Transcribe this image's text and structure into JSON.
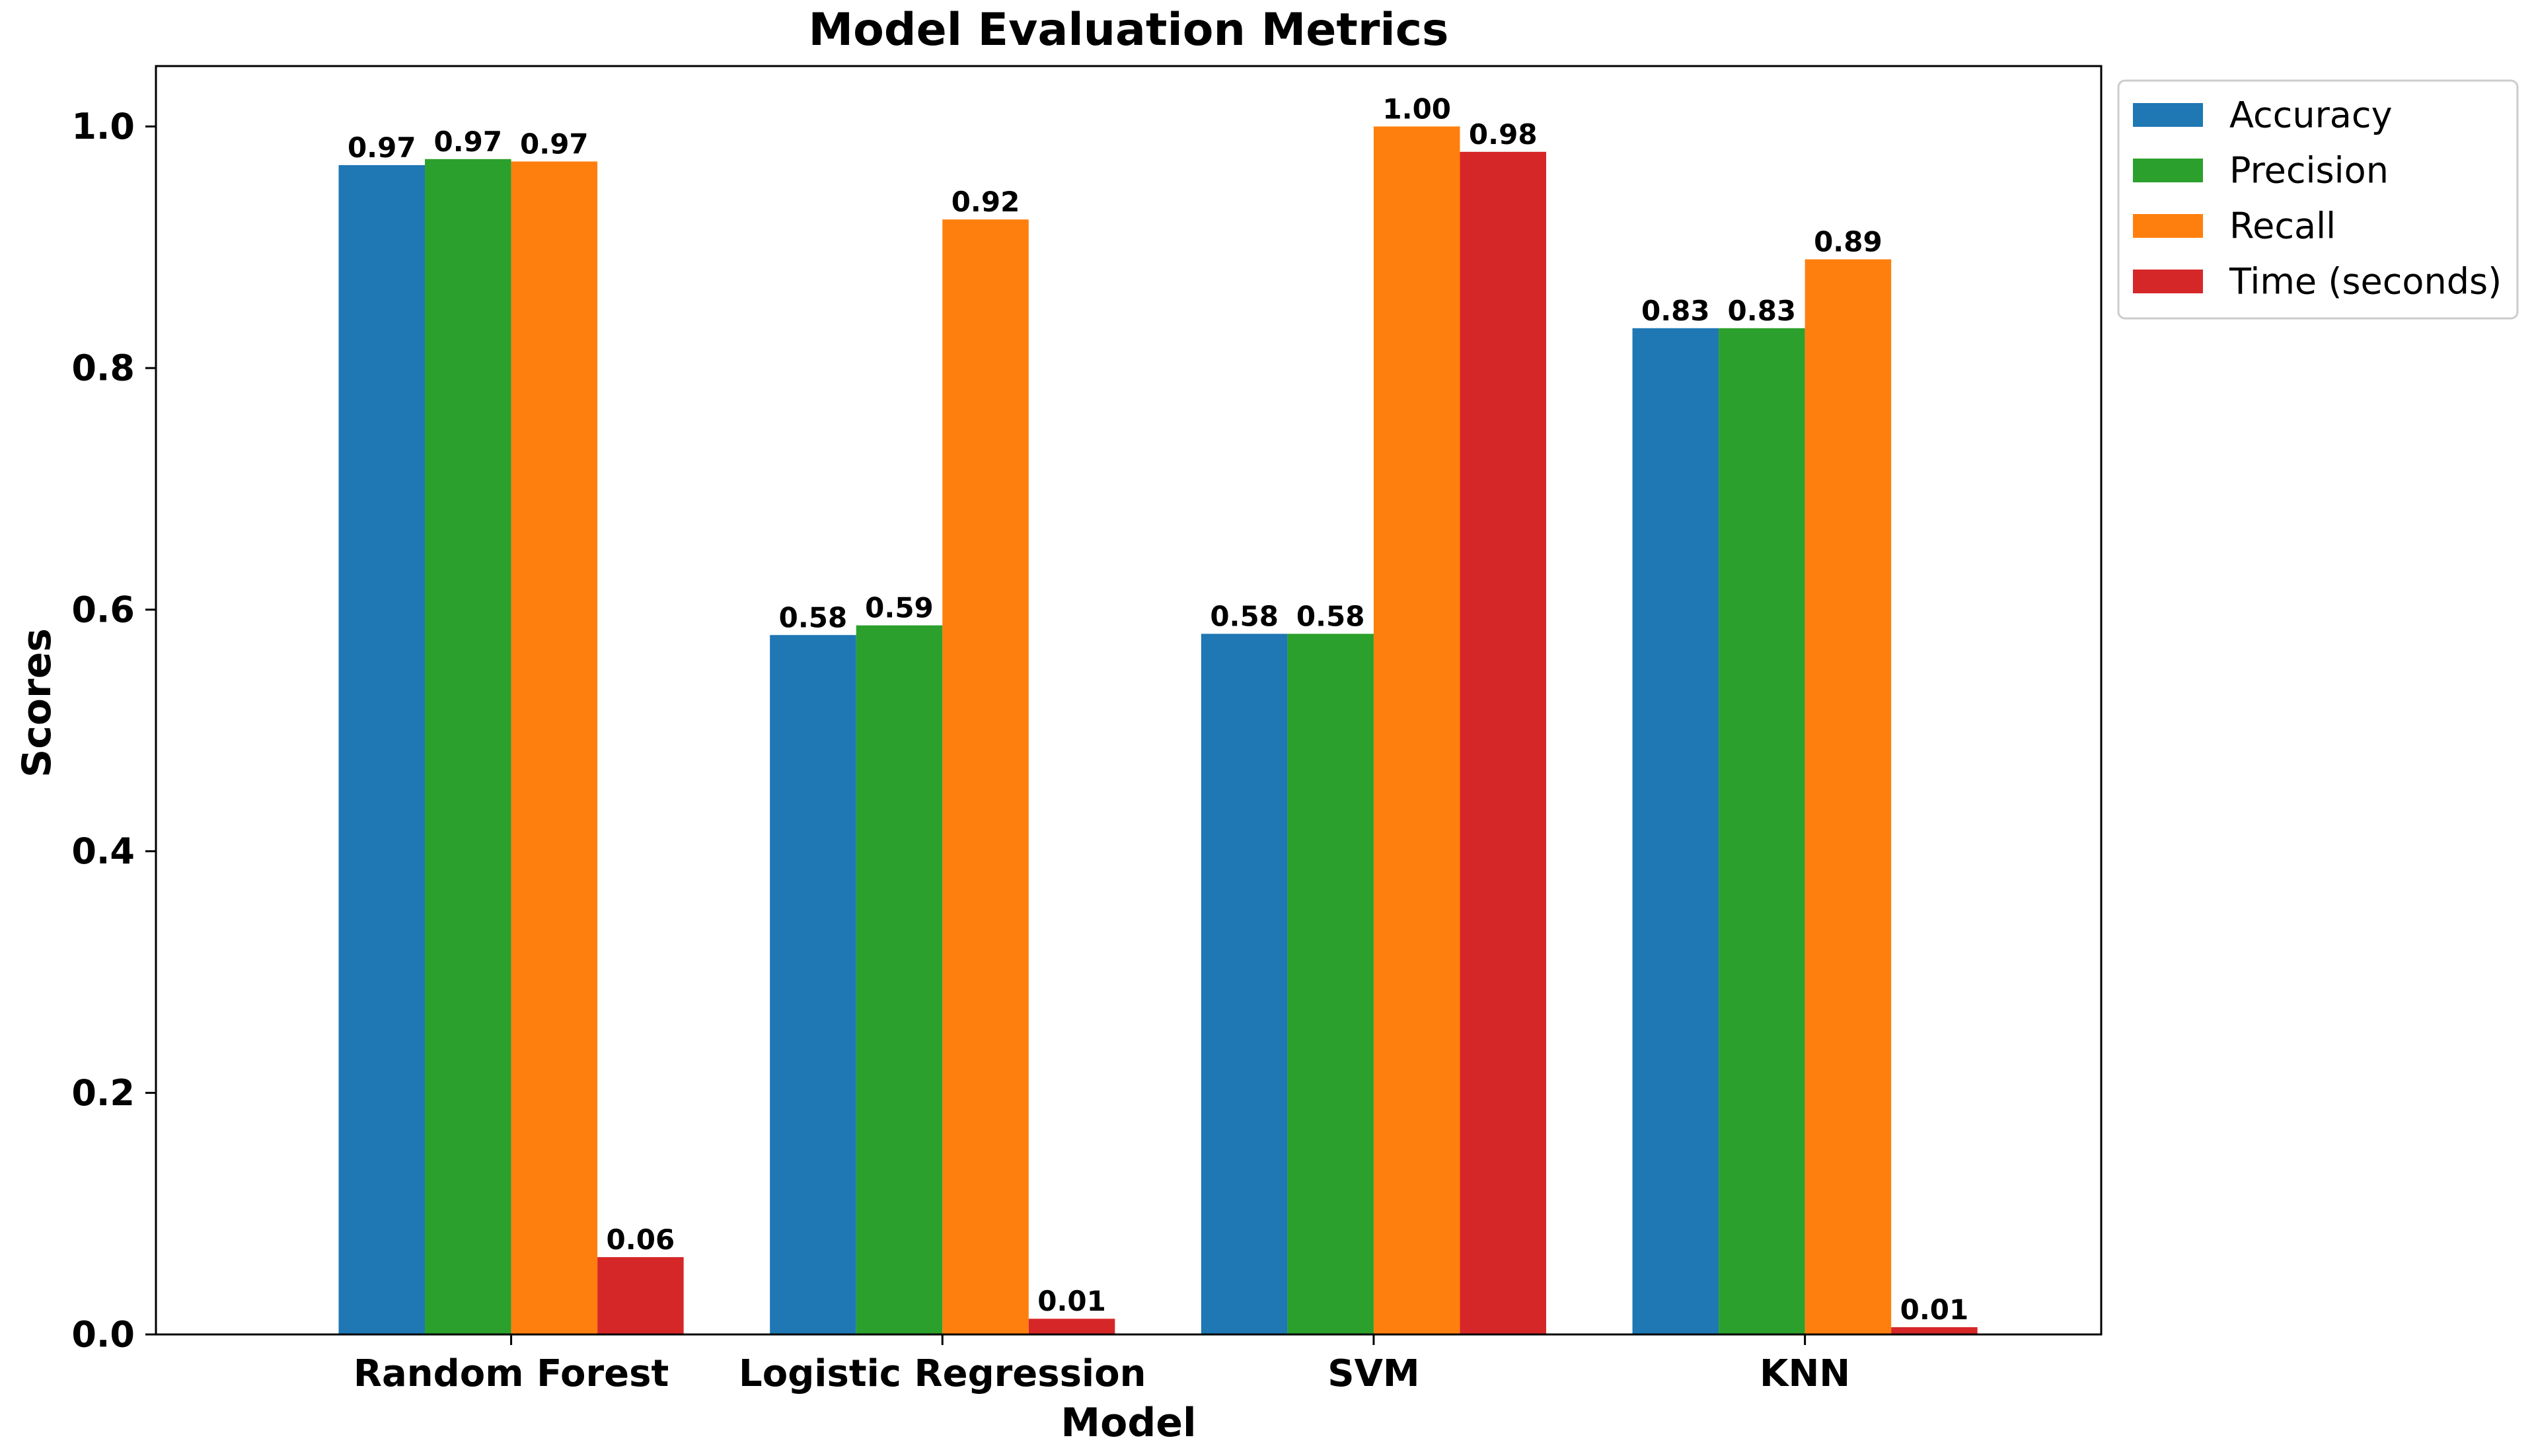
{
  "chart_data": {
    "type": "bar",
    "title": "Model Evaluation Metrics",
    "xlabel": "Model",
    "ylabel": "Scores",
    "ylim": [
      0,
      1.05
    ],
    "yticks": [
      0.0,
      0.2,
      0.4,
      0.6,
      0.8,
      1.0
    ],
    "ytick_labels": [
      "0.0",
      "0.2",
      "0.4",
      "0.6",
      "0.8",
      "1.0"
    ],
    "categories": [
      "Random Forest",
      "Logistic Regression",
      "SVM",
      "KNN"
    ],
    "grid": false,
    "legend_position": "outside-top-right",
    "series": [
      {
        "name": "Accuracy",
        "color": "#1f77b4",
        "values": [
          0.968,
          0.579,
          0.58,
          0.833
        ],
        "labels": [
          "0.97",
          "0.58",
          "0.58",
          "0.83"
        ]
      },
      {
        "name": "Precision",
        "color": "#2ca02c",
        "values": [
          0.973,
          0.587,
          0.58,
          0.833
        ],
        "labels": [
          "0.97",
          "0.59",
          "0.58",
          "0.83"
        ]
      },
      {
        "name": "Recall",
        "color": "#ff7f0e",
        "values": [
          0.971,
          0.923,
          1.0,
          0.89
        ],
        "labels": [
          "0.97",
          "0.92",
          "1.00",
          "0.89"
        ]
      },
      {
        "name": "Time (seconds)",
        "color": "#d62728",
        "values": [
          0.064,
          0.013,
          0.979,
          0.006
        ],
        "labels": [
          "0.06",
          "0.01",
          "0.98",
          "0.01"
        ]
      }
    ]
  }
}
